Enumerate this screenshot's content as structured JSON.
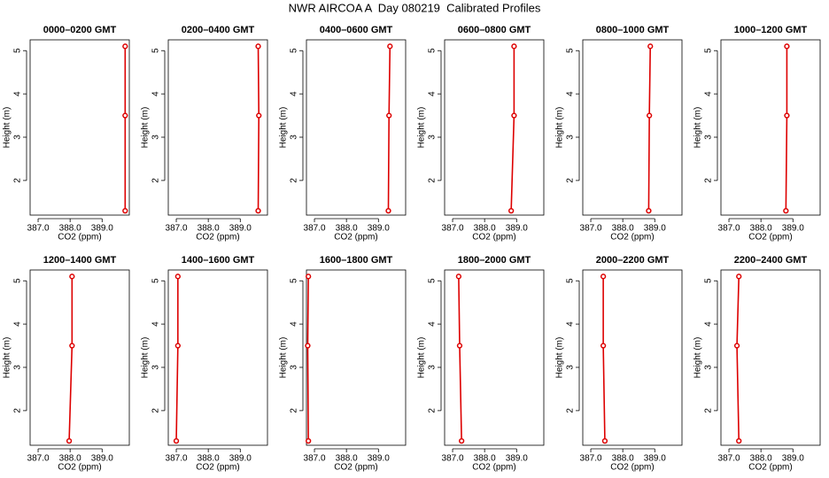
{
  "title": "NWR AIRCOA A  Day 080219  Calibrated Profiles",
  "chart_data": [
    {
      "type": "line",
      "title": "0000–0200 GMT",
      "xlabel": "CO2 (ppm)",
      "ylabel": "Height (m)",
      "color": "#dd0000",
      "y": [
        1.3,
        3.5,
        5.1
      ],
      "values": [
        389.72,
        389.72,
        389.72
      ],
      "xlim": [
        386.75,
        389.85
      ],
      "ylim": [
        1.2,
        5.25
      ],
      "xticks": [
        {
          "value": 387,
          "label": "387.0"
        },
        {
          "value": 388,
          "label": "388.0"
        },
        {
          "value": 389,
          "label": "389.0"
        }
      ],
      "yticks": [
        2,
        3,
        4,
        5
      ]
    },
    {
      "type": "line",
      "title": "0200–0400 GMT",
      "xlabel": "CO2 (ppm)",
      "ylabel": "Height (m)",
      "color": "#dd0000",
      "y": [
        1.3,
        3.5,
        5.1
      ],
      "values": [
        389.56,
        389.58,
        389.56
      ],
      "xlim": [
        386.75,
        389.85
      ],
      "ylim": [
        1.2,
        5.25
      ],
      "xticks": [
        {
          "value": 387,
          "label": "387.0"
        },
        {
          "value": 388,
          "label": "388.0"
        },
        {
          "value": 389,
          "label": "389.0"
        }
      ],
      "yticks": [
        2,
        3,
        4,
        5
      ]
    },
    {
      "type": "line",
      "title": "0400–0600 GMT",
      "xlabel": "CO2 (ppm)",
      "ylabel": "Height (m)",
      "color": "#dd0000",
      "y": [
        1.3,
        3.5,
        5.1
      ],
      "values": [
        389.31,
        389.33,
        389.36
      ],
      "xlim": [
        386.75,
        389.85
      ],
      "ylim": [
        1.2,
        5.25
      ],
      "xticks": [
        {
          "value": 387,
          "label": "387.0"
        },
        {
          "value": 388,
          "label": "388.0"
        },
        {
          "value": 389,
          "label": "389.0"
        }
      ],
      "yticks": [
        2,
        3,
        4,
        5
      ]
    },
    {
      "type": "line",
      "title": "0600–0800 GMT",
      "xlabel": "CO2 (ppm)",
      "ylabel": "Height (m)",
      "color": "#dd0000",
      "y": [
        1.3,
        3.5,
        5.1
      ],
      "values": [
        388.83,
        388.92,
        388.92
      ],
      "xlim": [
        386.75,
        389.85
      ],
      "ylim": [
        1.2,
        5.25
      ],
      "xticks": [
        {
          "value": 387,
          "label": "387.0"
        },
        {
          "value": 388,
          "label": "388.0"
        },
        {
          "value": 389,
          "label": "389.0"
        }
      ],
      "yticks": [
        2,
        3,
        4,
        5
      ]
    },
    {
      "type": "line",
      "title": "0800–1000 GMT",
      "xlabel": "CO2 (ppm)",
      "ylabel": "Height (m)",
      "color": "#dd0000",
      "y": [
        1.3,
        3.5,
        5.1
      ],
      "values": [
        388.81,
        388.83,
        388.86
      ],
      "xlim": [
        386.75,
        389.85
      ],
      "ylim": [
        1.2,
        5.25
      ],
      "xticks": [
        {
          "value": 387,
          "label": "387.0"
        },
        {
          "value": 388,
          "label": "388.0"
        },
        {
          "value": 389,
          "label": "389.0"
        }
      ],
      "yticks": [
        2,
        3,
        4,
        5
      ]
    },
    {
      "type": "line",
      "title": "1000–1200 GMT",
      "xlabel": "CO2 (ppm)",
      "ylabel": "Height (m)",
      "color": "#dd0000",
      "y": [
        1.3,
        3.5,
        5.1
      ],
      "values": [
        388.78,
        388.81,
        388.81
      ],
      "xlim": [
        386.75,
        389.85
      ],
      "ylim": [
        1.2,
        5.25
      ],
      "xticks": [
        {
          "value": 387,
          "label": "387.0"
        },
        {
          "value": 388,
          "label": "388.0"
        },
        {
          "value": 389,
          "label": "389.0"
        }
      ],
      "yticks": [
        2,
        3,
        4,
        5
      ]
    },
    {
      "type": "line",
      "title": "1200–1400 GMT",
      "xlabel": "CO2 (ppm)",
      "ylabel": "Height (m)",
      "color": "#dd0000",
      "y": [
        1.3,
        3.5,
        5.1
      ],
      "values": [
        387.97,
        388.06,
        388.06
      ],
      "xlim": [
        386.75,
        389.85
      ],
      "ylim": [
        1.2,
        5.25
      ],
      "xticks": [
        {
          "value": 387,
          "label": "387.0"
        },
        {
          "value": 388,
          "label": "388.0"
        },
        {
          "value": 389,
          "label": "389.0"
        }
      ],
      "yticks": [
        2,
        3,
        4,
        5
      ]
    },
    {
      "type": "line",
      "title": "1400–1600 GMT",
      "xlabel": "CO2 (ppm)",
      "ylabel": "Height (m)",
      "color": "#dd0000",
      "y": [
        1.3,
        3.5,
        5.1
      ],
      "values": [
        387.0,
        387.05,
        387.05
      ],
      "xlim": [
        386.75,
        389.85
      ],
      "ylim": [
        1.2,
        5.25
      ],
      "xticks": [
        {
          "value": 387,
          "label": "387.0"
        },
        {
          "value": 388,
          "label": "388.0"
        },
        {
          "value": 389,
          "label": "389.0"
        }
      ],
      "yticks": [
        2,
        3,
        4,
        5
      ]
    },
    {
      "type": "line",
      "title": "1600–1800 GMT",
      "xlabel": "CO2 (ppm)",
      "ylabel": "Height (m)",
      "color": "#dd0000",
      "y": [
        1.3,
        3.5,
        5.1
      ],
      "values": [
        386.81,
        386.79,
        386.81
      ],
      "xlim": [
        386.75,
        389.85
      ],
      "ylim": [
        1.2,
        5.25
      ],
      "xticks": [
        {
          "value": 387,
          "label": "387.0"
        },
        {
          "value": 388,
          "label": "388.0"
        },
        {
          "value": 389,
          "label": "389.0"
        }
      ],
      "yticks": [
        2,
        3,
        4,
        5
      ]
    },
    {
      "type": "line",
      "title": "1800–2000 GMT",
      "xlabel": "CO2 (ppm)",
      "ylabel": "Height (m)",
      "color": "#dd0000",
      "y": [
        1.3,
        3.5,
        5.1
      ],
      "values": [
        387.28,
        387.22,
        387.19
      ],
      "xlim": [
        386.75,
        389.85
      ],
      "ylim": [
        1.2,
        5.25
      ],
      "xticks": [
        {
          "value": 387,
          "label": "387.0"
        },
        {
          "value": 388,
          "label": "388.0"
        },
        {
          "value": 389,
          "label": "389.0"
        }
      ],
      "yticks": [
        2,
        3,
        4,
        5
      ]
    },
    {
      "type": "line",
      "title": "2000–2200 GMT",
      "xlabel": "CO2 (ppm)",
      "ylabel": "Height (m)",
      "color": "#dd0000",
      "y": [
        1.3,
        3.5,
        5.1
      ],
      "values": [
        387.44,
        387.39,
        387.39
      ],
      "xlim": [
        386.75,
        389.85
      ],
      "ylim": [
        1.2,
        5.25
      ],
      "xticks": [
        {
          "value": 387,
          "label": "387.0"
        },
        {
          "value": 388,
          "label": "388.0"
        },
        {
          "value": 389,
          "label": "389.0"
        }
      ],
      "yticks": [
        2,
        3,
        4,
        5
      ]
    },
    {
      "type": "line",
      "title": "2200–2400 GMT",
      "xlabel": "CO2 (ppm)",
      "ylabel": "Height (m)",
      "color": "#dd0000",
      "y": [
        1.3,
        3.5,
        5.1
      ],
      "values": [
        387.31,
        387.25,
        387.31
      ],
      "xlim": [
        386.75,
        389.85
      ],
      "ylim": [
        1.2,
        5.25
      ],
      "xticks": [
        {
          "value": 387,
          "label": "387.0"
        },
        {
          "value": 388,
          "label": "388.0"
        },
        {
          "value": 389,
          "label": "389.0"
        }
      ],
      "yticks": [
        2,
        3,
        4,
        5
      ]
    }
  ]
}
